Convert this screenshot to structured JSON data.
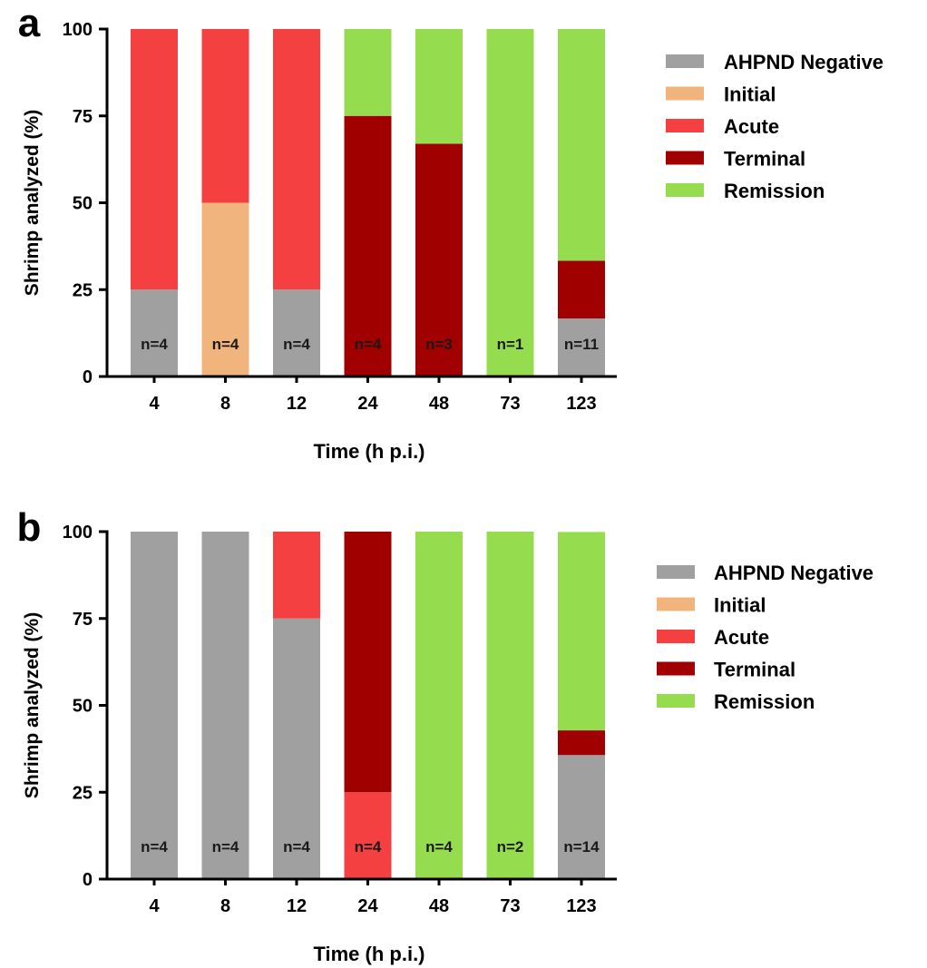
{
  "colors": {
    "AHPND Negative": "#a0a0a0",
    "Initial": "#f0b47c",
    "Acute": "#f44041",
    "Terminal": "#a00000",
    "Remission": "#96dc4f"
  },
  "chart_data": [
    {
      "panel_label": "a",
      "type": "bar",
      "stacked": true,
      "categories": [
        "4",
        "8",
        "12",
        "24",
        "48",
        "73",
        "123"
      ],
      "xlabel": "Time (h p.i.)",
      "ylabel": "Shrimp analyzed (%)",
      "ylim": [
        0,
        100
      ],
      "yticks": [
        "0",
        "25",
        "50",
        "75",
        "100"
      ],
      "grid": false,
      "legend_position": "right",
      "series": [
        {
          "name": "AHPND Negative",
          "values": [
            25,
            0,
            25,
            0,
            0,
            0,
            16.7
          ]
        },
        {
          "name": "Initial",
          "values": [
            0,
            50,
            0,
            0,
            0,
            0,
            0
          ]
        },
        {
          "name": "Acute",
          "values": [
            75,
            50,
            75,
            0,
            0,
            0,
            0
          ]
        },
        {
          "name": "Terminal",
          "values": [
            0,
            0,
            0,
            75,
            67,
            0,
            16.6
          ]
        },
        {
          "name": "Remission",
          "values": [
            0,
            0,
            0,
            25,
            33,
            100,
            66.7
          ]
        }
      ],
      "annotations": [
        "n=4",
        "n=4",
        "n=4",
        "n=4",
        "n=3",
        "n=1",
        "n=11"
      ]
    },
    {
      "panel_label": "b",
      "type": "bar",
      "stacked": true,
      "categories": [
        "4",
        "8",
        "12",
        "24",
        "48",
        "73",
        "123"
      ],
      "xlabel": "Time (h p.i.)",
      "ylabel": "Shrimp analyzed (%)",
      "ylim": [
        0,
        100
      ],
      "yticks": [
        "0",
        "25",
        "50",
        "75",
        "100"
      ],
      "grid": false,
      "legend_position": "right",
      "series": [
        {
          "name": "AHPND Negative",
          "values": [
            100,
            100,
            75,
            0,
            0,
            0,
            35.7
          ]
        },
        {
          "name": "Initial",
          "values": [
            0,
            0,
            0,
            0,
            0,
            0,
            0
          ]
        },
        {
          "name": "Acute",
          "values": [
            0,
            0,
            25,
            25,
            0,
            0,
            0
          ]
        },
        {
          "name": "Terminal",
          "values": [
            0,
            0,
            0,
            75,
            0,
            0,
            7.1
          ]
        },
        {
          "name": "Remission",
          "values": [
            0,
            0,
            0,
            0,
            100,
            100,
            57.1
          ]
        }
      ],
      "annotations": [
        "n=4",
        "n=4",
        "n=4",
        "n=4",
        "n=4",
        "n=2",
        "n=14"
      ]
    }
  ]
}
